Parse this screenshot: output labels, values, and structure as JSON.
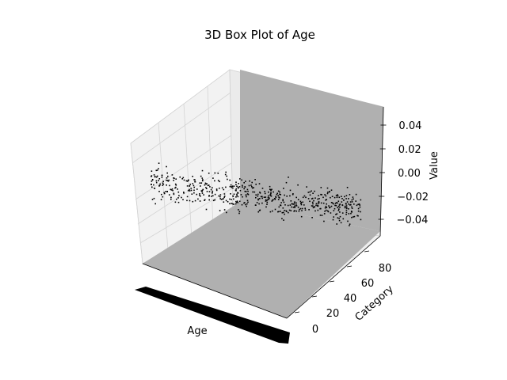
{
  "chart_data": {
    "type": "scatter",
    "projection": "3d",
    "title": "3D Box Plot of Age",
    "xlabel": "Age",
    "ylabel": "Category",
    "zlabel": "Value",
    "y_ticks": [
      "0",
      "20",
      "40",
      "60",
      "80"
    ],
    "z_ticks": [
      "0.04",
      "0.02",
      "0.00",
      "−0.02",
      "−0.04"
    ],
    "ylim": [
      -5,
      95
    ],
    "zlim": [
      -0.05,
      0.05
    ],
    "grid": true,
    "point_color": "#000000",
    "surface_color": "#b0b0b0",
    "point_count": 600,
    "note_x_ticks": "x tick labels overlap into an unreadable black band"
  }
}
